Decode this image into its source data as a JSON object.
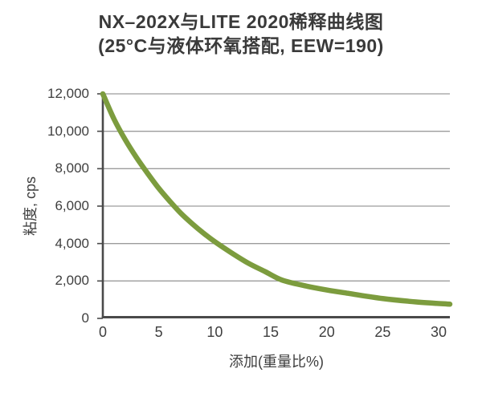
{
  "title": {
    "line1": "NX–202X与LITE 2020稀释曲线图",
    "line2": "(25°C与液体环氧搭配, EEW=190)"
  },
  "colors": {
    "curve": "#7C9C3E",
    "axis": "#4a4a4a",
    "grid": "#9c9c9c",
    "text": "#3e3e3e",
    "title_text": "#3a3a3a",
    "background": "#ffffff"
  },
  "chart_data": {
    "type": "line",
    "title": "NX–202X与LITE 2020稀释曲线图",
    "subtitle": "(25°C与液体环氧搭配, EEW=190)",
    "xlabel": "添加(重量比%)",
    "ylabel": "粘度, cps",
    "xlim": [
      0,
      31
    ],
    "ylim": [
      0,
      12000
    ],
    "xticks": [
      0,
      5,
      10,
      15,
      20,
      25,
      30
    ],
    "xtick_labels": [
      "0",
      "5",
      "10",
      "15",
      "20",
      "25",
      "30"
    ],
    "yticks": [
      0,
      2000,
      4000,
      6000,
      8000,
      10000,
      12000
    ],
    "ytick_labels": [
      "0",
      "2,000",
      "4,000",
      "6,000",
      "8,000",
      "10,000",
      "12,000"
    ],
    "grid": "horizontal",
    "legend": "none",
    "line_width": 6.5,
    "series": [
      {
        "name": "dilution-curve",
        "x": [
          0,
          1,
          2,
          3,
          4,
          5,
          6,
          7,
          8,
          9,
          10,
          11.5,
          13,
          14.5,
          16,
          18,
          20,
          22,
          25,
          28,
          31
        ],
        "y": [
          12000,
          10650,
          9550,
          8600,
          7750,
          6950,
          6250,
          5600,
          5050,
          4550,
          4100,
          3500,
          2950,
          2500,
          2050,
          1750,
          1520,
          1330,
          1060,
          880,
          760
        ]
      }
    ]
  }
}
